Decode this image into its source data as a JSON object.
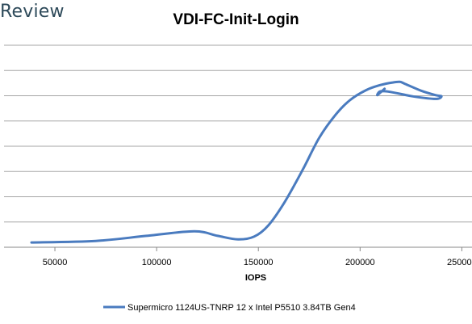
{
  "brand": {
    "text": "Review",
    "color": "#2e4a5a"
  },
  "chart_data": {
    "type": "line",
    "title": "VDI-FC-Init-Login",
    "xlabel": "IOPS",
    "ylabel": "",
    "xlim": [
      25000,
      255000
    ],
    "xticks": [
      50000,
      100000,
      150000,
      200000,
      250000
    ],
    "xtick_labels": [
      "50000",
      "100000",
      "150000",
      "200000",
      "250000"
    ],
    "y_tick_labels": [],
    "y_gridlines": 8,
    "grid": true,
    "legend_position": "bottom",
    "series": [
      {
        "name": "Supermicro 1124US-TNRP 12 x Intel P5510 3.84TB Gen4",
        "color": "#4a7bbf",
        "x": [
          38500,
          70000,
          95000,
          118500,
          130000,
          140000,
          148000,
          155000,
          163000,
          172000,
          180000,
          188000,
          195000,
          203000,
          210000,
          216000,
          219500,
          222000,
          230000,
          237000,
          240000,
          237000,
          226000,
          215000,
          210000,
          208500,
          212000
        ],
        "y": [
          0.38,
          0.5,
          0.9,
          1.26,
          0.9,
          0.62,
          0.85,
          1.75,
          3.6,
          6.2,
          8.7,
          10.5,
          11.65,
          12.45,
          12.85,
          13.05,
          13.1,
          12.95,
          12.4,
          12.05,
          11.95,
          11.75,
          11.95,
          12.3,
          12.35,
          12.05,
          12.55
        ]
      }
    ]
  }
}
